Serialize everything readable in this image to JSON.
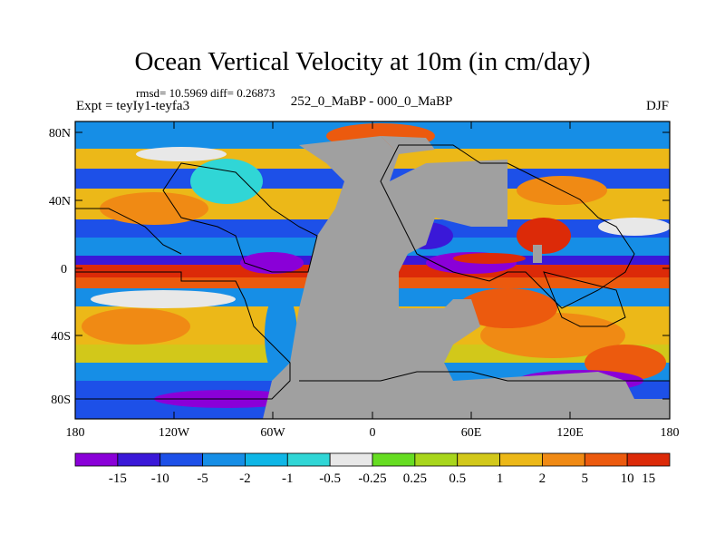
{
  "title": "Ocean Vertical Velocity at 10m (in cm/day)",
  "stats": "rmsd= 10.5969 diff= 0.26873",
  "experiment": "Expt = teyIy1-teyfa3",
  "comparison": "252_0_MaBP - 000_0_MaBP",
  "season": "DJF",
  "lat_labels": [
    "80N",
    "40N",
    "0",
    "40S",
    "80S"
  ],
  "lon_labels": [
    "180",
    "120W",
    "60W",
    "0",
    "60E",
    "120E",
    "180"
  ],
  "colorbar": {
    "colors": [
      "#8a00d8",
      "#3a18d8",
      "#1d50e8",
      "#168ee6",
      "#0fb6e6",
      "#30d6d6",
      "#e8e8e8",
      "#66dd22",
      "#a8d61c",
      "#d2c81a",
      "#ecb818",
      "#f08a14",
      "#ec5a0e",
      "#dc2a08"
    ],
    "labels": [
      "-15",
      "-10",
      "-5",
      "-2",
      "-1",
      "-0.5",
      "-0.25",
      "0.25",
      "0.5",
      "1",
      "2",
      "5",
      "10",
      "15"
    ]
  },
  "land_color": "#a0a0a0"
}
